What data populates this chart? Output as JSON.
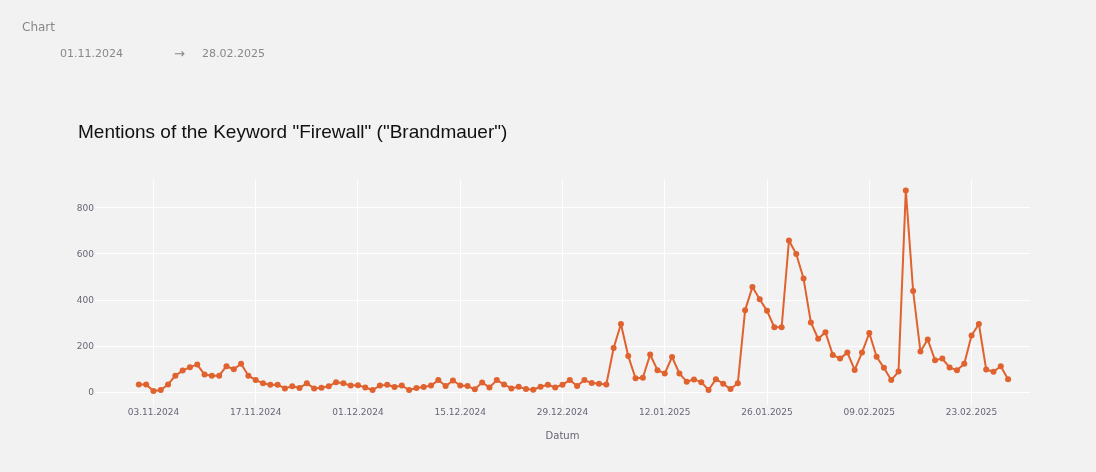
{
  "chart_data": {
    "type": "line",
    "title": "Mentions of the Keyword \"Firewall\" (\"Brandmauer\")",
    "xlabel": "Datum",
    "annotations": [
      "Chart",
      "01.11.2024",
      "→",
      "28.02.2025"
    ],
    "x": [
      "2024-11-01",
      "2024-11-02",
      "2024-11-03",
      "2024-11-04",
      "2024-11-05",
      "2024-11-06",
      "2024-11-07",
      "2024-11-08",
      "2024-11-09",
      "2024-11-10",
      "2024-11-11",
      "2024-11-12",
      "2024-11-13",
      "2024-11-14",
      "2024-11-15",
      "2024-11-16",
      "2024-11-17",
      "2024-11-18",
      "2024-11-19",
      "2024-11-20",
      "2024-11-21",
      "2024-11-22",
      "2024-11-23",
      "2024-11-24",
      "2024-11-25",
      "2024-11-26",
      "2024-11-27",
      "2024-11-28",
      "2024-11-29",
      "2024-11-30",
      "2024-12-01",
      "2024-12-02",
      "2024-12-03",
      "2024-12-04",
      "2024-12-05",
      "2024-12-06",
      "2024-12-07",
      "2024-12-08",
      "2024-12-09",
      "2024-12-10",
      "2024-12-11",
      "2024-12-12",
      "2024-12-13",
      "2024-12-14",
      "2024-12-15",
      "2024-12-16",
      "2024-12-17",
      "2024-12-18",
      "2024-12-19",
      "2024-12-20",
      "2024-12-21",
      "2024-12-22",
      "2024-12-23",
      "2024-12-24",
      "2024-12-25",
      "2024-12-26",
      "2024-12-27",
      "2024-12-28",
      "2024-12-29",
      "2024-12-30",
      "2024-12-31",
      "2025-01-01",
      "2025-01-02",
      "2025-01-03",
      "2025-01-04",
      "2025-01-05",
      "2025-01-06",
      "2025-01-07",
      "2025-01-08",
      "2025-01-09",
      "2025-01-10",
      "2025-01-11",
      "2025-01-12",
      "2025-01-13",
      "2025-01-14",
      "2025-01-15",
      "2025-01-16",
      "2025-01-17",
      "2025-01-18",
      "2025-01-19",
      "2025-01-20",
      "2025-01-21",
      "2025-01-22",
      "2025-01-23",
      "2025-01-24",
      "2025-01-25",
      "2025-01-26",
      "2025-01-27",
      "2025-01-28",
      "2025-01-29",
      "2025-01-30",
      "2025-01-31",
      "2025-02-01",
      "2025-02-02",
      "2025-02-03",
      "2025-02-04",
      "2025-02-05",
      "2025-02-06",
      "2025-02-07",
      "2025-02-08",
      "2025-02-09",
      "2025-02-10",
      "2025-02-11",
      "2025-02-12",
      "2025-02-13",
      "2025-02-14",
      "2025-02-15",
      "2025-02-16",
      "2025-02-17",
      "2025-02-18",
      "2025-02-19",
      "2025-02-20",
      "2025-02-21",
      "2025-02-22",
      "2025-02-23",
      "2025-02-24",
      "2025-02-25",
      "2025-02-26",
      "2025-02-27",
      "2025-02-28"
    ],
    "series": [
      {
        "color": "#e0622e",
        "values": [
          34,
          34,
          6,
          10,
          34,
          72,
          94,
          109,
          120,
          77,
          72,
          72,
          113,
          100,
          124,
          72,
          53,
          39,
          33,
          33,
          17,
          26,
          19,
          39,
          17,
          20,
          26,
          44,
          39,
          29,
          31,
          21,
          10,
          29,
          33,
          23,
          29,
          10,
          19,
          23,
          29,
          53,
          27,
          51,
          30,
          27,
          13,
          43,
          21,
          53,
          34,
          17,
          24,
          14,
          11,
          24,
          33,
          21,
          33,
          53,
          27,
          53,
          40,
          37,
          34,
          192,
          296,
          157,
          61,
          63,
          164,
          96,
          82,
          153,
          82,
          46,
          56,
          44,
          10,
          57,
          37,
          14,
          39,
          356,
          456,
          403,
          353,
          282,
          282,
          658,
          599,
          493,
          303,
          232,
          260,
          162,
          146,
          172,
          97,
          172,
          257,
          154,
          106,
          53,
          90,
          875,
          439,
          177,
          229,
          139,
          146,
          107,
          96,
          124,
          246,
          296,
          99,
          89,
          113,
          57
        ]
      }
    ],
    "xlim": [
      "2024-10-26",
      "2025-03-03"
    ],
    "xticks": [
      {
        "value": "2024-11-03",
        "label": "03.11.2024"
      },
      {
        "value": "2024-11-17",
        "label": "17.11.2024"
      },
      {
        "value": "2024-12-01",
        "label": "01.12.2024"
      },
      {
        "value": "2024-12-15",
        "label": "15.12.2024"
      },
      {
        "value": "2024-12-29",
        "label": "29.12.2024"
      },
      {
        "value": "2025-01-12",
        "label": "12.01.2025"
      },
      {
        "value": "2025-01-26",
        "label": "26.01.2025"
      },
      {
        "value": "2025-02-09",
        "label": "09.02.2025"
      },
      {
        "value": "2025-02-23",
        "label": "23.02.2025"
      }
    ],
    "ylim": [
      -55,
      920
    ],
    "yticks": [
      0,
      200,
      400,
      600,
      800
    ],
    "grid": true,
    "marker": "circle",
    "line_style": "solid"
  }
}
